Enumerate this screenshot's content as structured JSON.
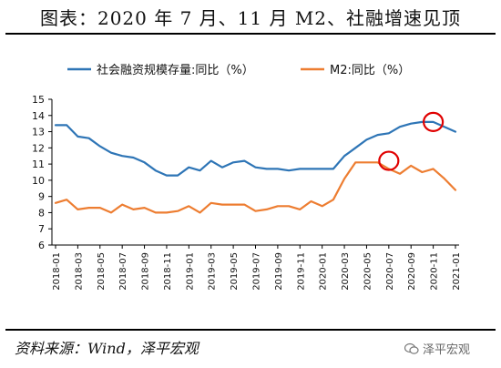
{
  "page": {
    "title": "图表：2020 年 7 月、11 月 M2、社融增速见顶",
    "source": "资料来源：Wind，泽平宏观",
    "watermark": "泽平宏观"
  },
  "colors": {
    "series1": "#2E75B6",
    "series2": "#ED7D31",
    "marker": "#E00000",
    "axis": "#000000"
  },
  "chart_data": {
    "type": "line",
    "title": "",
    "xlabel": "",
    "ylabel": "",
    "ylim": [
      6,
      15
    ],
    "yticks": [
      6,
      7,
      8,
      9,
      10,
      11,
      12,
      13,
      14,
      15
    ],
    "x": [
      "2018-01",
      "2018-02",
      "2018-03",
      "2018-04",
      "2018-05",
      "2018-06",
      "2018-07",
      "2018-08",
      "2018-09",
      "2018-10",
      "2018-11",
      "2018-12",
      "2019-01",
      "2019-02",
      "2019-03",
      "2019-04",
      "2019-05",
      "2019-06",
      "2019-07",
      "2019-08",
      "2019-09",
      "2019-10",
      "2019-11",
      "2019-12",
      "2020-01",
      "2020-02",
      "2020-03",
      "2020-04",
      "2020-05",
      "2020-06",
      "2020-07",
      "2020-08",
      "2020-09",
      "2020-10",
      "2020-11",
      "2020-12",
      "2021-01"
    ],
    "xtick_labels": [
      "2018-01",
      "2018-03",
      "2018-05",
      "2018-07",
      "2018-09",
      "2018-11",
      "2019-01",
      "2019-03",
      "2019-05",
      "2019-07",
      "2019-09",
      "2019-11",
      "2020-01",
      "2020-03",
      "2020-05",
      "2020-07",
      "2020-09",
      "2020-11",
      "2021-01"
    ],
    "series": [
      {
        "name": "社会融资规模存量:同比（%）",
        "color_key": "series1",
        "values": [
          13.4,
          13.4,
          12.7,
          12.6,
          12.1,
          11.7,
          11.5,
          11.4,
          11.1,
          10.6,
          10.3,
          10.3,
          10.8,
          10.6,
          11.2,
          10.8,
          11.1,
          11.2,
          10.8,
          10.7,
          10.7,
          10.6,
          10.7,
          10.7,
          10.7,
          10.7,
          11.5,
          12.0,
          12.5,
          12.8,
          12.9,
          13.3,
          13.5,
          13.6,
          13.6,
          13.3,
          13.0
        ]
      },
      {
        "name": "M2:同比（%）",
        "color_key": "series2",
        "values": [
          8.6,
          8.8,
          8.2,
          8.3,
          8.3,
          8.0,
          8.5,
          8.2,
          8.3,
          8.0,
          8.0,
          8.1,
          8.4,
          8.0,
          8.6,
          8.5,
          8.5,
          8.5,
          8.1,
          8.2,
          8.4,
          8.4,
          8.2,
          8.7,
          8.4,
          8.8,
          10.1,
          11.1,
          11.1,
          11.1,
          10.7,
          10.4,
          10.9,
          10.5,
          10.7,
          10.1,
          9.4
        ]
      }
    ],
    "annotations": [
      {
        "type": "circle",
        "x": "2020-07",
        "y": 11.2,
        "color_key": "marker"
      },
      {
        "type": "circle",
        "x": "2020-11",
        "y": 13.6,
        "color_key": "marker"
      }
    ]
  }
}
